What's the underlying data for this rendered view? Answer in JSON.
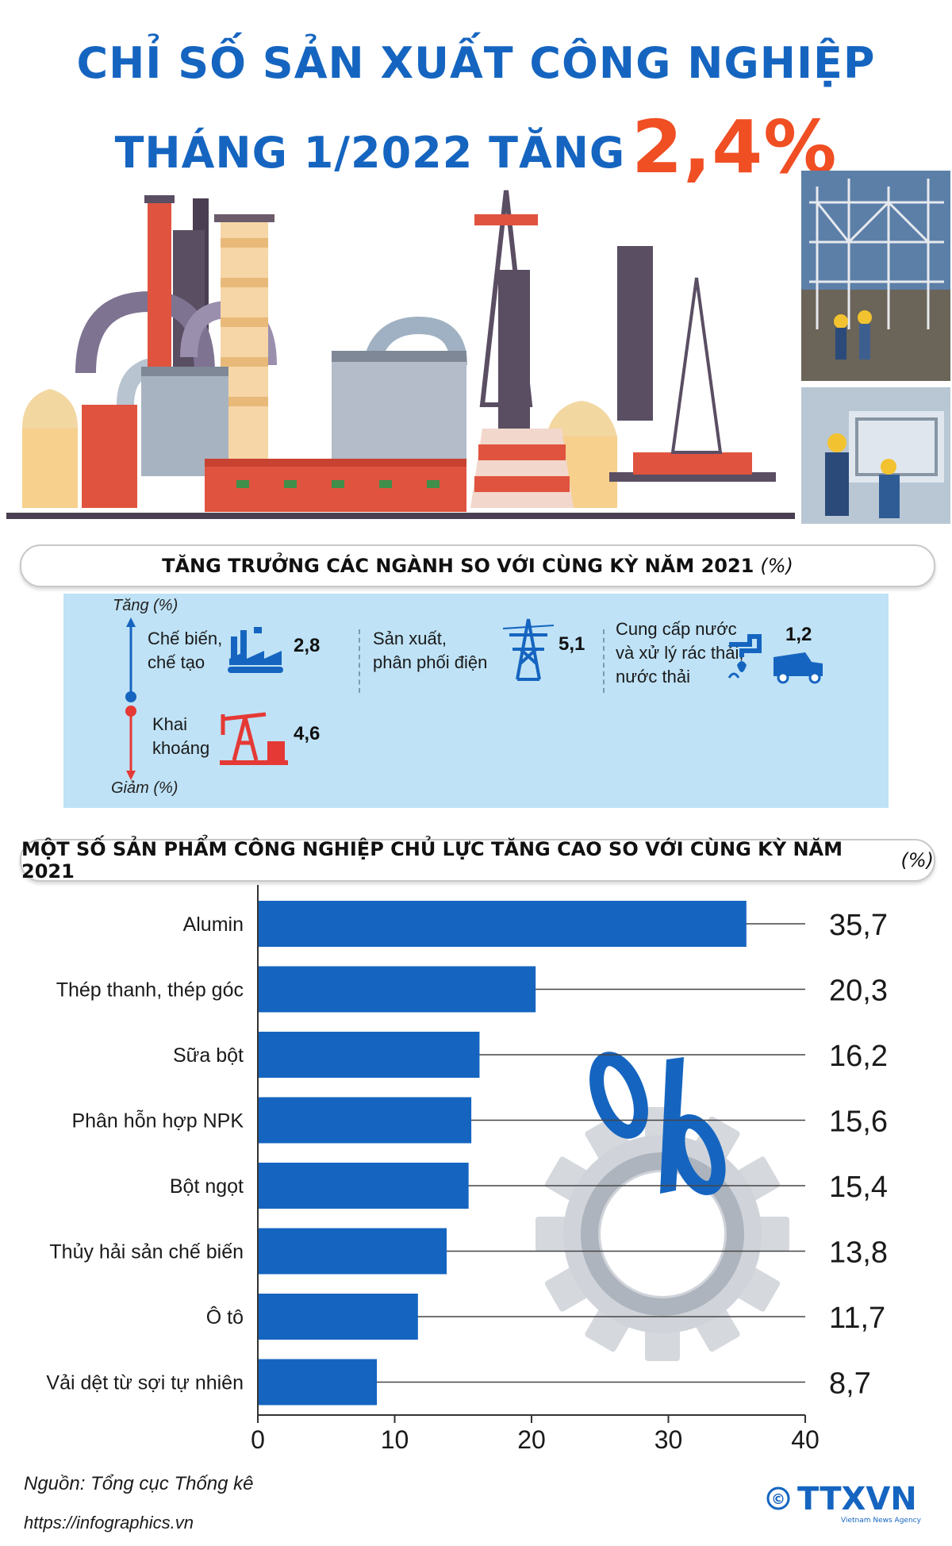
{
  "header": {
    "title_line1": "CHỈ SỐ SẢN XUẤT CÔNG NGHIỆP",
    "title_line2": "THÁNG 1/2022 TĂNG",
    "highlight": "2,4%"
  },
  "section1": {
    "title": "TĂNG TRƯỞNG CÁC NGÀNH SO VỚI CÙNG KỲ NĂM 2021",
    "unit": "(%)",
    "axis_up": "Tăng (%)",
    "axis_down": "Giảm (%)",
    "sectors": [
      {
        "label_l1": "Chế biến,",
        "label_l2": "chế tạo",
        "label_l3": "",
        "value": "2,8",
        "icon": "factory-icon"
      },
      {
        "label_l1": "Sản xuất,",
        "label_l2": "phân phối điện",
        "label_l3": "",
        "value": "5,1",
        "icon": "power-tower-icon"
      },
      {
        "label_l1": "Cung cấp nước",
        "label_l2": "và xử lý rác thải,",
        "label_l3": "nước thải",
        "value": "1,2",
        "icon": "water-truck-icon"
      },
      {
        "label_l1": "Khai",
        "label_l2": "khoáng",
        "label_l3": "",
        "value": "4,6",
        "icon": "oil-pump-icon"
      }
    ]
  },
  "section2": {
    "title": "MỘT SỐ SẢN PHẨM CÔNG NGHIỆP CHỦ LỰC TĂNG CAO SO VỚI CÙNG KỲ NĂM 2021",
    "unit": "(%)"
  },
  "chart_data": {
    "type": "bar",
    "orientation": "horizontal",
    "categories": [
      "Alumin",
      "Thép thanh, thép góc",
      "Sữa bột",
      "Phân hỗn hợp NPK",
      "Bột ngọt",
      "Thủy hải sản chế biến",
      "Ô tô",
      "Vải dệt từ sợi tự nhiên"
    ],
    "values": [
      35.7,
      20.3,
      16.2,
      15.6,
      15.4,
      13.8,
      11.7,
      8.7
    ],
    "value_labels": [
      "35,7",
      "20,3",
      "16,2",
      "15,6",
      "15,4",
      "13,8",
      "11,7",
      "8,7"
    ],
    "xlim": [
      0,
      40
    ],
    "xticks": [
      "0",
      "10",
      "20",
      "30",
      "40"
    ],
    "bar_color": "#1565c0",
    "grid": false
  },
  "footer": {
    "source": "Nguồn: Tổng cục Thống kê",
    "website": "https://infographics.vn",
    "logo_text": "TTXVN",
    "logo_sub": "Vietnam News Agency",
    "copyright": "©"
  },
  "colors": {
    "title_blue": "#1565c0",
    "accent_orange": "#f04e23",
    "panel_bg": "#bfe2f6"
  }
}
